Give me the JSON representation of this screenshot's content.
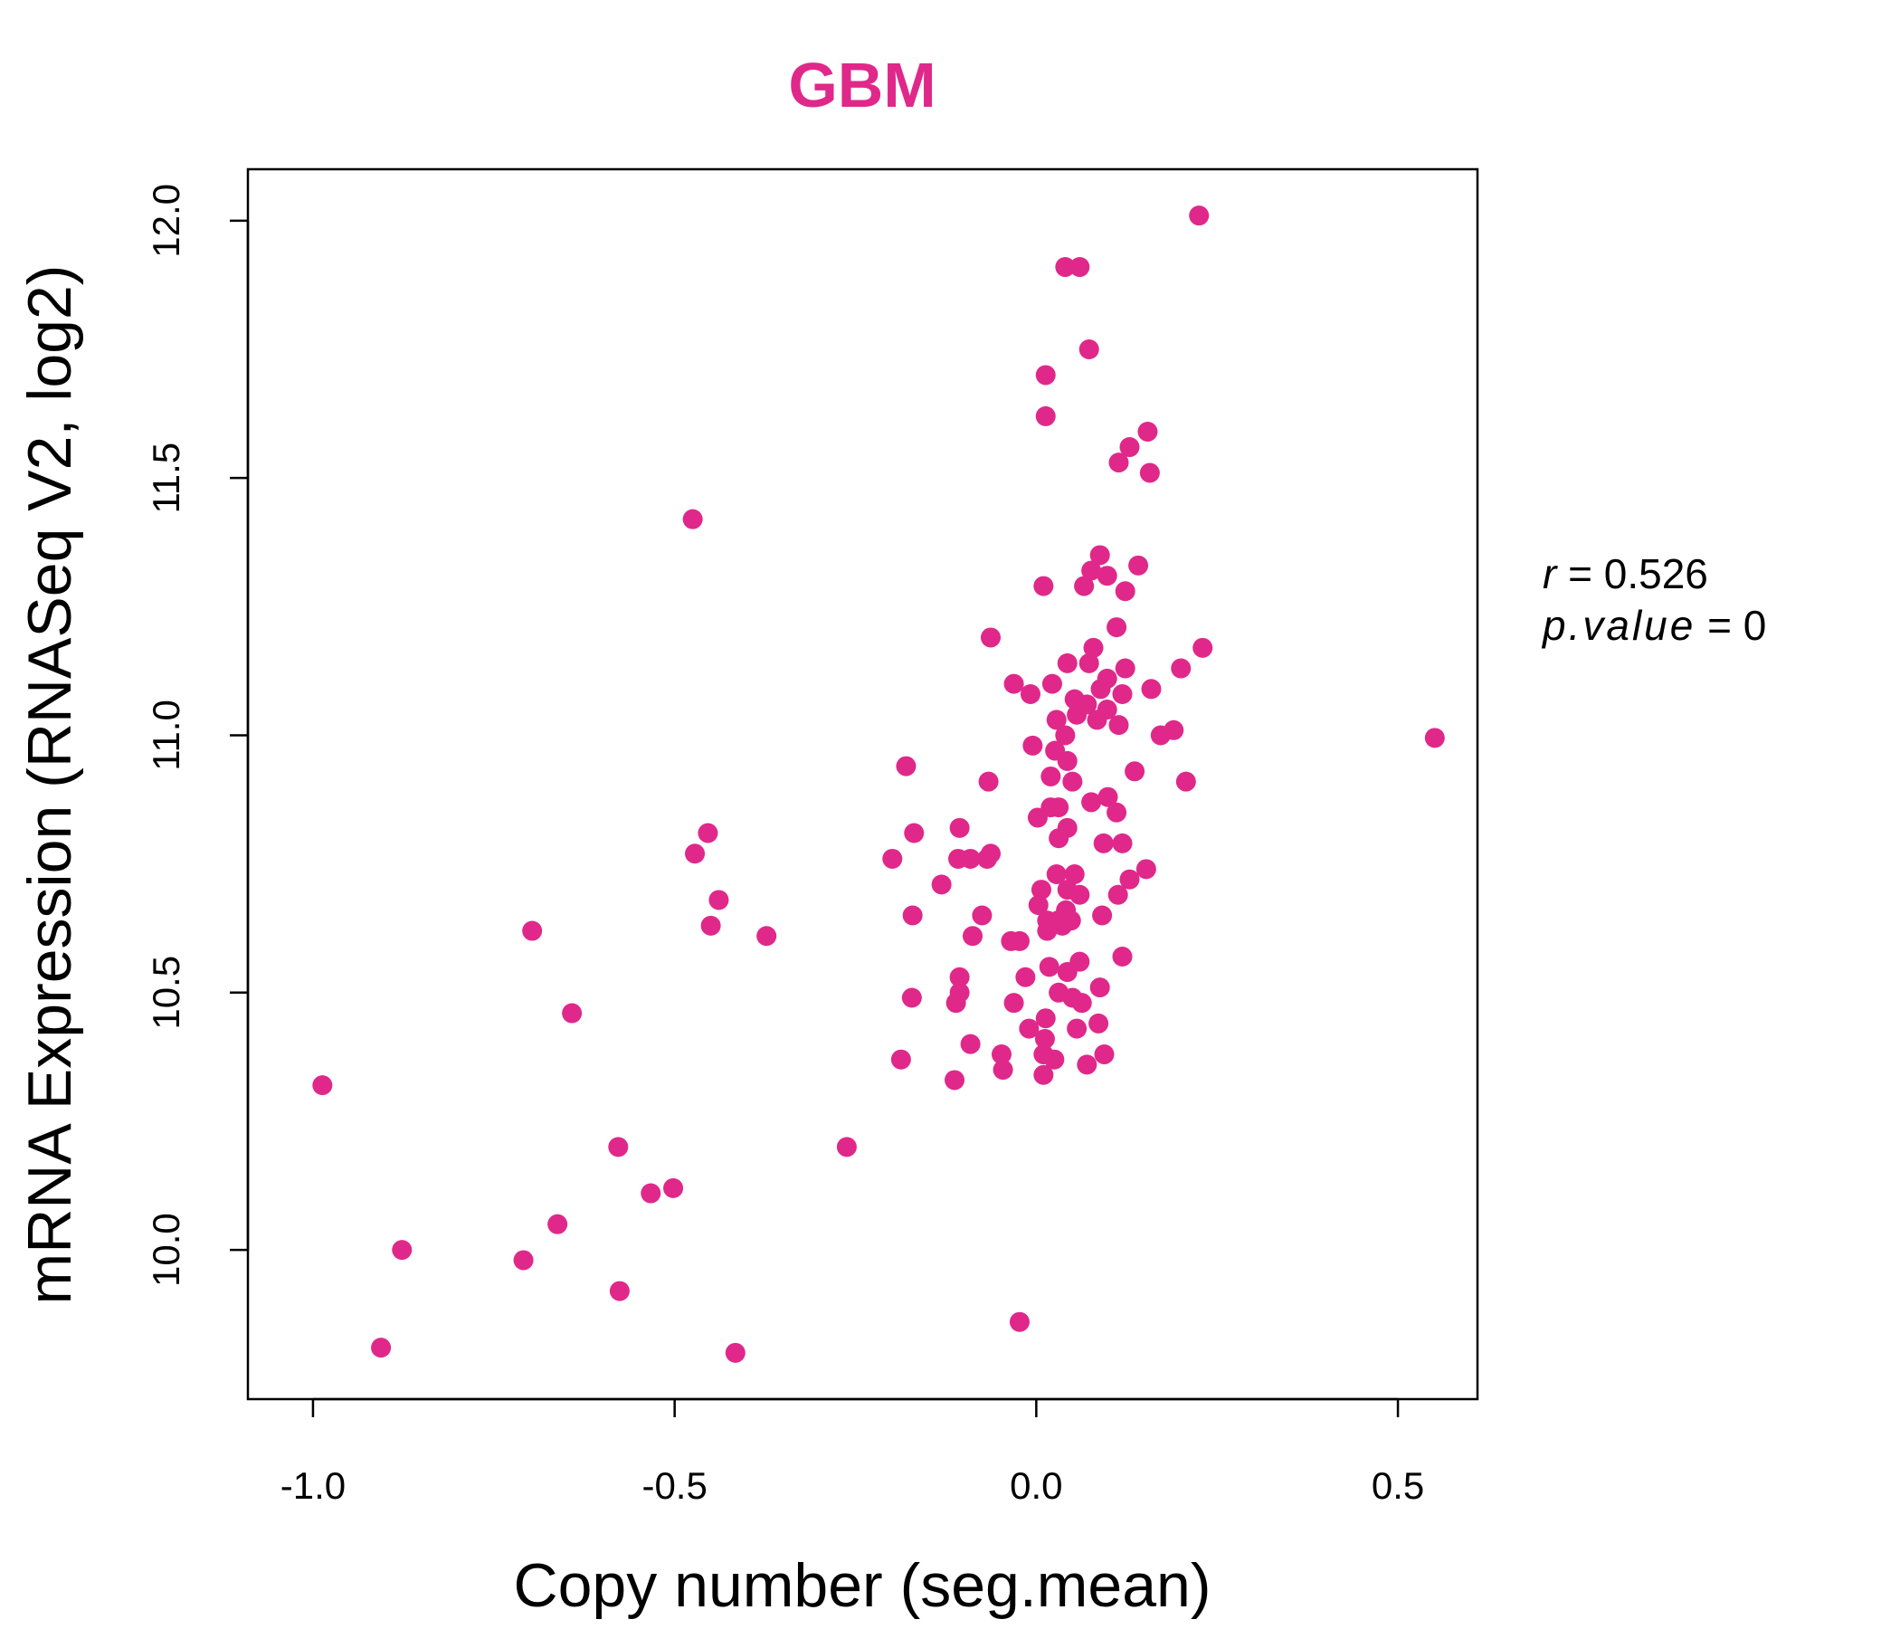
{
  "chart_data": {
    "type": "scatter",
    "title": "GBM",
    "xlabel": "Copy number (seg.mean)",
    "ylabel": "mRNA Expression (RNASeq V2, log2)",
    "xlim": [
      -1.09,
      0.61
    ],
    "ylim": [
      9.71,
      12.1
    ],
    "xticks": [
      -1.0,
      -0.5,
      0.0,
      0.5
    ],
    "xtick_labels": [
      "-1.0",
      "-0.5",
      "0.0",
      "0.5"
    ],
    "yticks": [
      10.0,
      10.5,
      11.0,
      11.5,
      12.0
    ],
    "ytick_labels": [
      "10.0",
      "10.5",
      "11.0",
      "11.5",
      "12.0"
    ],
    "grid": false,
    "annotation": {
      "r_label": "r",
      "r_value": "0.526",
      "p_label": "p.value",
      "p_value": "0"
    },
    "colors": {
      "point": "#E0288A",
      "title": "#E0288A",
      "axis": "#000000"
    },
    "points": [
      [
        0.225,
        12.01
      ],
      [
        0.04,
        11.91
      ],
      [
        0.06,
        11.91
      ],
      [
        0.073,
        11.75
      ],
      [
        0.013,
        11.7
      ],
      [
        0.013,
        11.62
      ],
      [
        0.154,
        11.59
      ],
      [
        0.129,
        11.56
      ],
      [
        0.114,
        11.53
      ],
      [
        0.157,
        11.51
      ],
      [
        -0.475,
        11.42
      ],
      [
        0.088,
        11.35
      ],
      [
        0.141,
        11.33
      ],
      [
        0.076,
        11.32
      ],
      [
        0.098,
        11.31
      ],
      [
        0.01,
        11.29
      ],
      [
        0.066,
        11.29
      ],
      [
        0.123,
        11.28
      ],
      [
        0.111,
        11.21
      ],
      [
        -0.063,
        11.19
      ],
      [
        0.079,
        11.17
      ],
      [
        0.23,
        11.17
      ],
      [
        0.043,
        11.14
      ],
      [
        0.073,
        11.14
      ],
      [
        0.123,
        11.13
      ],
      [
        0.2,
        11.13
      ],
      [
        0.098,
        11.11
      ],
      [
        -0.031,
        11.1
      ],
      [
        0.022,
        11.1
      ],
      [
        0.089,
        11.09
      ],
      [
        0.159,
        11.09
      ],
      [
        -0.008,
        11.08
      ],
      [
        0.053,
        11.07
      ],
      [
        0.119,
        11.08
      ],
      [
        0.07,
        11.06
      ],
      [
        0.098,
        11.05
      ],
      [
        0.056,
        11.04
      ],
      [
        0.028,
        11.03
      ],
      [
        0.084,
        11.03
      ],
      [
        0.114,
        11.02
      ],
      [
        0.04,
        11.0
      ],
      [
        0.172,
        11.0
      ],
      [
        0.19,
        11.01
      ],
      [
        0.551,
        10.995
      ],
      [
        -0.005,
        10.98
      ],
      [
        0.026,
        10.97
      ],
      [
        0.043,
        10.95
      ],
      [
        -0.18,
        10.94
      ],
      [
        0.136,
        10.93
      ],
      [
        -0.066,
        10.91
      ],
      [
        0.02,
        10.92
      ],
      [
        0.05,
        10.91
      ],
      [
        0.207,
        10.91
      ],
      [
        0.099,
        10.88
      ],
      [
        0.076,
        10.87
      ],
      [
        0.02,
        10.86
      ],
      [
        0.031,
        10.86
      ],
      [
        0.002,
        10.84
      ],
      [
        0.111,
        10.85
      ],
      [
        0.043,
        10.82
      ],
      [
        -0.106,
        10.82
      ],
      [
        -0.454,
        10.81
      ],
      [
        -0.169,
        10.81
      ],
      [
        0.031,
        10.8
      ],
      [
        0.093,
        10.79
      ],
      [
        0.119,
        10.79
      ],
      [
        -0.472,
        10.77
      ],
      [
        -0.199,
        10.76
      ],
      [
        -0.063,
        10.77
      ],
      [
        -0.108,
        10.76
      ],
      [
        -0.091,
        10.76
      ],
      [
        -0.068,
        10.76
      ],
      [
        0.152,
        10.74
      ],
      [
        0.028,
        10.73
      ],
      [
        0.053,
        10.73
      ],
      [
        -0.131,
        10.71
      ],
      [
        0.129,
        10.72
      ],
      [
        0.007,
        10.7
      ],
      [
        0.043,
        10.7
      ],
      [
        0.113,
        10.69
      ],
      [
        0.06,
        10.69
      ],
      [
        -0.439,
        10.68
      ],
      [
        0.003,
        10.67
      ],
      [
        0.041,
        10.66
      ],
      [
        -0.171,
        10.65
      ],
      [
        -0.075,
        10.65
      ],
      [
        0.091,
        10.65
      ],
      [
        0.015,
        10.64
      ],
      [
        0.03,
        10.64
      ],
      [
        0.048,
        10.64
      ],
      [
        0.036,
        10.63
      ],
      [
        -0.45,
        10.63
      ],
      [
        -0.697,
        10.62
      ],
      [
        0.015,
        10.62
      ],
      [
        -0.373,
        10.61
      ],
      [
        -0.088,
        10.61
      ],
      [
        -0.023,
        10.6
      ],
      [
        -0.035,
        10.6
      ],
      [
        0.119,
        10.57
      ],
      [
        0.06,
        10.56
      ],
      [
        0.018,
        10.55
      ],
      [
        -0.015,
        10.53
      ],
      [
        -0.106,
        10.53
      ],
      [
        0.043,
        10.54
      ],
      [
        0.088,
        10.51
      ],
      [
        0.031,
        10.5
      ],
      [
        -0.106,
        10.5
      ],
      [
        -0.172,
        10.49
      ],
      [
        0.05,
        10.49
      ],
      [
        -0.031,
        10.48
      ],
      [
        0.063,
        10.48
      ],
      [
        -0.111,
        10.48
      ],
      [
        -0.642,
        10.46
      ],
      [
        0.013,
        10.45
      ],
      [
        0.086,
        10.44
      ],
      [
        -0.01,
        10.43
      ],
      [
        0.056,
        10.43
      ],
      [
        0.012,
        10.41
      ],
      [
        -0.091,
        10.4
      ],
      [
        0.094,
        10.38
      ],
      [
        -0.048,
        10.38
      ],
      [
        -0.187,
        10.37
      ],
      [
        0.01,
        10.38
      ],
      [
        0.025,
        10.37
      ],
      [
        0.07,
        10.36
      ],
      [
        -0.046,
        10.35
      ],
      [
        0.01,
        10.34
      ],
      [
        -0.113,
        10.33
      ],
      [
        -0.987,
        10.32
      ],
      [
        -0.262,
        10.2
      ],
      [
        -0.578,
        10.2
      ],
      [
        -0.502,
        10.12
      ],
      [
        -0.533,
        10.11
      ],
      [
        -0.662,
        10.05
      ],
      [
        -0.877,
        10.0
      ],
      [
        -0.709,
        9.98
      ],
      [
        -0.576,
        9.92
      ],
      [
        -0.023,
        9.86
      ],
      [
        -0.906,
        9.81
      ],
      [
        -0.416,
        9.8
      ]
    ]
  }
}
